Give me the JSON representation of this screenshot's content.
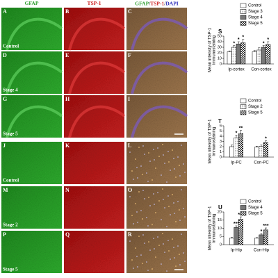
{
  "figure": {
    "headers": [
      {
        "text": "GFAP",
        "color": "#2e9e2e"
      },
      {
        "text": "TSP-1",
        "color": "#cc1f1f"
      }
    ],
    "merged_header": [
      {
        "text": "GFAP",
        "color": "#2e9e2e"
      },
      {
        "text": "/",
        "color": "#333333"
      },
      {
        "text": "TSP-1",
        "color": "#cc1f1f"
      },
      {
        "text": "/",
        "color": "#333333"
      },
      {
        "text": "DAPI",
        "color": "#2a2ab8"
      }
    ],
    "rows": [
      {
        "letters": [
          "A",
          "B",
          "C"
        ],
        "label": "Control"
      },
      {
        "letters": [
          "D",
          "E",
          "F"
        ],
        "label": "Stage 4"
      },
      {
        "letters": [
          "G",
          "H",
          "I"
        ],
        "label": "Stage 5"
      },
      {
        "letters": [
          "J",
          "K",
          "L"
        ],
        "label": "Control"
      },
      {
        "letters": [
          "M",
          "N",
          "O"
        ],
        "label": "Stage 2"
      },
      {
        "letters": [
          "P",
          "Q",
          "R"
        ],
        "label": "Stage 5"
      }
    ]
  },
  "charts": [
    {
      "type": "bar",
      "letter": "S",
      "ylabel": [
        "Mean intensity of TSP-1",
        "immunostaining"
      ],
      "categories": [
        "Ip-cortex",
        "Con-cortex"
      ],
      "ylim": [
        0,
        50
      ],
      "yticks": [
        0,
        10,
        20,
        30,
        40,
        50
      ],
      "series": [
        {
          "name": "Control",
          "pattern": "white",
          "values": [
            22,
            22
          ],
          "errors": [
            1.5,
            2
          ],
          "annotations": [
            null,
            null
          ]
        },
        {
          "name": "Stage 3",
          "pattern": "dots",
          "values": [
            30,
            25
          ],
          "errors": [
            3,
            4
          ],
          "annotations": [
            "*",
            null
          ]
        },
        {
          "name": "Stage 4",
          "pattern": "gray",
          "values": [
            36,
            30
          ],
          "errors": [
            4,
            3
          ],
          "annotations": [
            "*",
            "*"
          ]
        },
        {
          "name": "Stage 5",
          "pattern": "checker",
          "values": [
            38,
            35
          ],
          "errors": [
            6,
            5
          ],
          "annotations": [
            "*",
            "*"
          ]
        }
      ]
    },
    {
      "type": "bar",
      "letter": "T",
      "ylabel": [
        "Mean intensity of TSP-1",
        "immunostaining"
      ],
      "categories": [
        "Ip-PC",
        "Con-PC"
      ],
      "ylim": [
        0,
        6
      ],
      "yticks": [
        0,
        1,
        2,
        3,
        4,
        5,
        6
      ],
      "series": [
        {
          "name": "Control",
          "pattern": "white",
          "values": [
            2.0,
            1.9
          ],
          "errors": [
            0.3,
            0.2
          ],
          "annotations": [
            null,
            null
          ]
        },
        {
          "name": "Stage 2",
          "pattern": "dots",
          "values": [
            3.7,
            2.1
          ],
          "errors": [
            0.5,
            0.2
          ],
          "annotations": [
            "*",
            null
          ]
        },
        {
          "name": "Stage 5",
          "pattern": "checker",
          "values": [
            4.5,
            2.8
          ],
          "errors": [
            0.6,
            0.3
          ],
          "annotations": [
            "**",
            "*"
          ]
        }
      ]
    },
    {
      "type": "bar",
      "letter": "U",
      "ylabel": [
        "Mean intensity of TSP-1",
        "immunostaining"
      ],
      "categories": [
        "Ip-Hip",
        "Con-Hip"
      ],
      "ylim": [
        0,
        20
      ],
      "yticks": [
        0,
        5,
        10,
        15,
        20
      ],
      "series": [
        {
          "name": "Control",
          "pattern": "white",
          "values": [
            4,
            4
          ],
          "errors": [
            0.4,
            0.3
          ],
          "annotations": [
            null,
            null
          ]
        },
        {
          "name": "Stage 4",
          "pattern": "gray",
          "values": [
            10.5,
            6
          ],
          "errors": [
            1,
            0.8
          ],
          "annotations": [
            "***",
            "*"
          ]
        },
        {
          "name": "Stage 5",
          "pattern": "checker",
          "values": [
            15.5,
            9
          ],
          "errors": [
            1.5,
            1.2
          ],
          "annotations": [
            "***",
            "***"
          ]
        }
      ]
    }
  ]
}
